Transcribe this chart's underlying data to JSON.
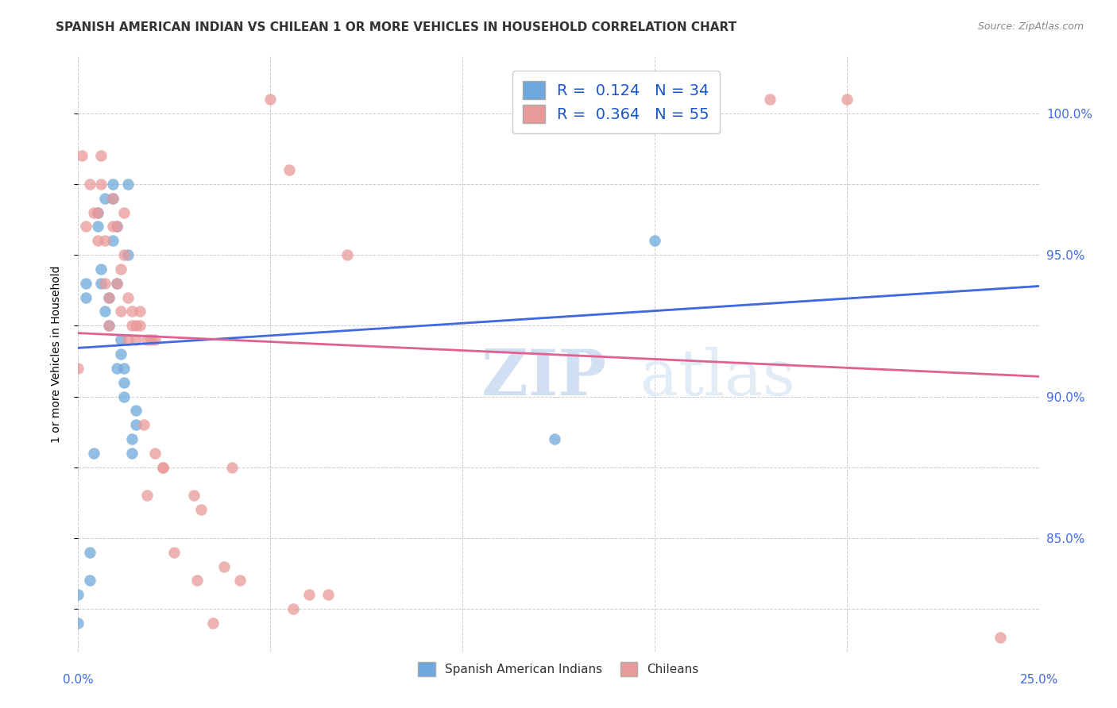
{
  "title": "SPANISH AMERICAN INDIAN VS CHILEAN 1 OR MORE VEHICLES IN HOUSEHOLD CORRELATION CHART",
  "source": "Source: ZipAtlas.com",
  "ylabel": "1 or more Vehicles in Household",
  "legend_blue_R": "0.124",
  "legend_blue_N": "34",
  "legend_pink_R": "0.364",
  "legend_pink_N": "55",
  "legend_label1": "Spanish American Indians",
  "legend_label2": "Chileans",
  "blue_color": "#6fa8dc",
  "pink_color": "#ea9999",
  "blue_line_color": "#4169e1",
  "pink_line_color": "#e06090",
  "dashed_line_color": "#b0c4de",
  "watermark_zip": "ZIP",
  "watermark_atlas": "atlas",
  "xlim": [
    0,
    0.25
  ],
  "ylim": [
    81.0,
    102.0
  ],
  "y_ticks": [
    82.5,
    85.0,
    87.5,
    90.0,
    92.5,
    95.0,
    97.5,
    100.0
  ],
  "y_tick_labels": [
    "",
    "85.0%",
    "",
    "90.0%",
    "",
    "95.0%",
    "",
    "100.0%"
  ],
  "x_ticks": [
    0.0,
    0.05,
    0.1,
    0.15,
    0.2,
    0.25
  ],
  "blue_points_x": [
    0.0,
    0.0,
    0.002,
    0.002,
    0.003,
    0.003,
    0.004,
    0.005,
    0.005,
    0.006,
    0.006,
    0.007,
    0.007,
    0.008,
    0.008,
    0.009,
    0.009,
    0.009,
    0.01,
    0.01,
    0.01,
    0.011,
    0.011,
    0.012,
    0.012,
    0.012,
    0.013,
    0.013,
    0.014,
    0.014,
    0.015,
    0.015,
    0.124,
    0.15
  ],
  "blue_points_y": [
    83.0,
    82.0,
    93.5,
    94.0,
    84.5,
    83.5,
    88.0,
    96.5,
    96.0,
    94.0,
    94.5,
    97.0,
    93.0,
    93.5,
    92.5,
    97.5,
    97.0,
    95.5,
    96.0,
    94.0,
    91.0,
    92.0,
    91.5,
    91.0,
    90.5,
    90.0,
    97.5,
    95.0,
    88.0,
    88.5,
    89.0,
    89.5,
    88.5,
    95.5
  ],
  "pink_points_x": [
    0.0,
    0.001,
    0.002,
    0.003,
    0.004,
    0.005,
    0.005,
    0.006,
    0.006,
    0.007,
    0.007,
    0.008,
    0.008,
    0.009,
    0.009,
    0.01,
    0.01,
    0.011,
    0.011,
    0.012,
    0.012,
    0.013,
    0.013,
    0.014,
    0.014,
    0.015,
    0.015,
    0.016,
    0.016,
    0.017,
    0.018,
    0.018,
    0.019,
    0.02,
    0.02,
    0.022,
    0.022,
    0.025,
    0.03,
    0.031,
    0.032,
    0.035,
    0.038,
    0.04,
    0.042,
    0.05,
    0.055,
    0.056,
    0.06,
    0.065,
    0.07,
    0.15,
    0.18,
    0.2,
    0.24
  ],
  "pink_points_y": [
    91.0,
    98.5,
    96.0,
    97.5,
    96.5,
    95.5,
    96.5,
    98.5,
    97.5,
    95.5,
    94.0,
    92.5,
    93.5,
    97.0,
    96.0,
    94.0,
    96.0,
    93.0,
    94.5,
    96.5,
    95.0,
    92.0,
    93.5,
    92.5,
    93.0,
    92.0,
    92.5,
    93.0,
    92.5,
    89.0,
    86.5,
    92.0,
    92.0,
    92.0,
    88.0,
    87.5,
    87.5,
    84.5,
    86.5,
    83.5,
    86.0,
    82.0,
    84.0,
    87.5,
    83.5,
    100.5,
    98.0,
    82.5,
    83.0,
    83.0,
    95.0,
    99.5,
    100.5,
    100.5,
    81.5
  ]
}
